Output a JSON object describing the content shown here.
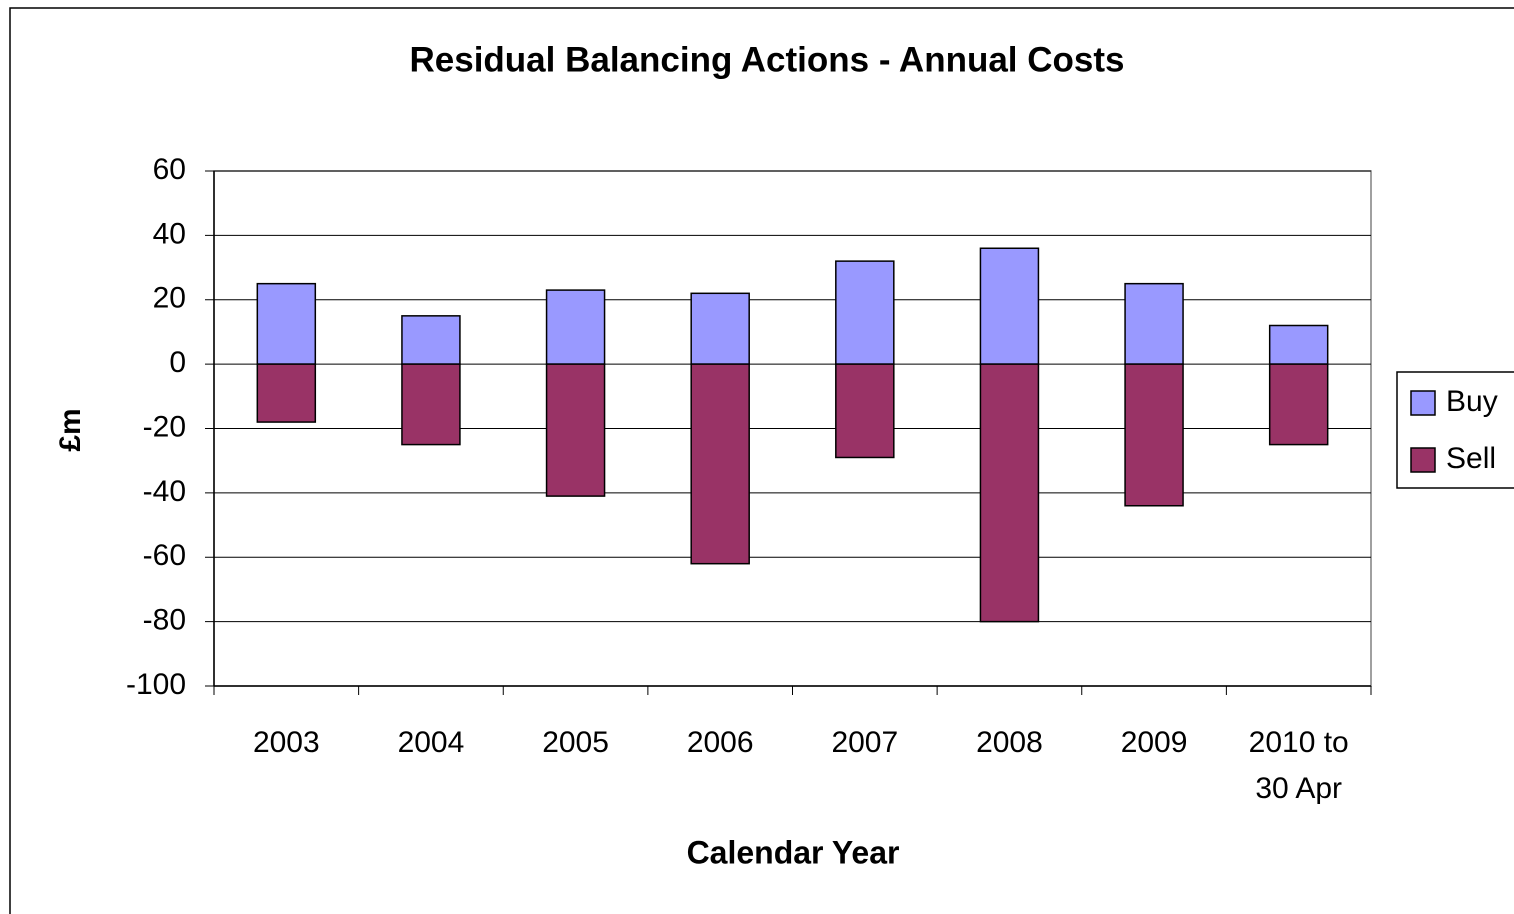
{
  "chart_data": {
    "type": "bar",
    "stacked": true,
    "title": "Residual Balancing Actions - Annual Costs",
    "x_label": "Calendar Year",
    "y_label": "£m",
    "categories": [
      "2003",
      "2004",
      "2005",
      "2006",
      "2007",
      "2008",
      "2009",
      "2010 to 30 Apr"
    ],
    "series": [
      {
        "name": "Buy",
        "color": "#9999ff",
        "values": [
          25,
          15,
          23,
          22,
          32,
          36,
          25,
          12
        ]
      },
      {
        "name": "Sell",
        "color": "#993366",
        "values": [
          -18,
          -25,
          -41,
          -62,
          -29,
          -80,
          -44,
          -25
        ]
      }
    ],
    "ylim": [
      -100,
      60
    ],
    "yticks": [
      -100,
      -80,
      -60,
      -40,
      -20,
      0,
      20,
      40,
      60
    ],
    "grid": true,
    "legend": "right"
  }
}
